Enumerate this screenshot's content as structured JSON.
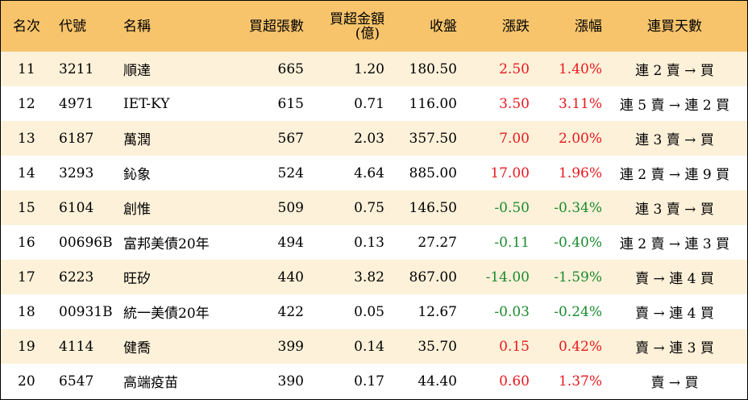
{
  "header": {
    "rank": "名次",
    "code": "代號",
    "name": "名稱",
    "buy_lots": "買超張數",
    "buy_amount_line1": "買超金額",
    "buy_amount_line2": "(億)",
    "close": "收盤",
    "change": "漲跌",
    "pct": "漲幅",
    "streak": "連買天數"
  },
  "rows": [
    {
      "rank": "11",
      "code": "3211",
      "name": "順達",
      "lots": "665",
      "amount": "1.20",
      "close": "180.50",
      "change": "2.50",
      "pct": "1.40%",
      "streak": "連 2 賣 → 買",
      "dir": "up"
    },
    {
      "rank": "12",
      "code": "4971",
      "name": "IET-KY",
      "lots": "615",
      "amount": "0.71",
      "close": "116.00",
      "change": "3.50",
      "pct": "3.11%",
      "streak": "連 5 賣 → 連 2 買",
      "dir": "up"
    },
    {
      "rank": "13",
      "code": "6187",
      "name": "萬潤",
      "lots": "567",
      "amount": "2.03",
      "close": "357.50",
      "change": "7.00",
      "pct": "2.00%",
      "streak": "連 3 賣 → 買",
      "dir": "up"
    },
    {
      "rank": "14",
      "code": "3293",
      "name": "鈊象",
      "lots": "524",
      "amount": "4.64",
      "close": "885.00",
      "change": "17.00",
      "pct": "1.96%",
      "streak": "連 2 賣 → 連 9 買",
      "dir": "up"
    },
    {
      "rank": "15",
      "code": "6104",
      "name": "創惟",
      "lots": "509",
      "amount": "0.75",
      "close": "146.50",
      "change": "-0.50",
      "pct": "-0.34%",
      "streak": "連 3 賣 → 買",
      "dir": "down"
    },
    {
      "rank": "16",
      "code": "00696B",
      "name": "富邦美債20年",
      "lots": "494",
      "amount": "0.13",
      "close": "27.27",
      "change": "-0.11",
      "pct": "-0.40%",
      "streak": "連 2 賣 → 連 3 買",
      "dir": "down"
    },
    {
      "rank": "17",
      "code": "6223",
      "name": "旺矽",
      "lots": "440",
      "amount": "3.82",
      "close": "867.00",
      "change": "-14.00",
      "pct": "-1.59%",
      "streak": "賣 → 連 4 買",
      "dir": "down"
    },
    {
      "rank": "18",
      "code": "00931B",
      "name": "統一美債20年",
      "lots": "422",
      "amount": "0.05",
      "close": "12.67",
      "change": "-0.03",
      "pct": "-0.24%",
      "streak": "賣 → 連 4 買",
      "dir": "down"
    },
    {
      "rank": "19",
      "code": "4114",
      "name": "健喬",
      "lots": "399",
      "amount": "0.14",
      "close": "35.70",
      "change": "0.15",
      "pct": "0.42%",
      "streak": "賣 → 連 3 買",
      "dir": "up"
    },
    {
      "rank": "20",
      "code": "6547",
      "name": "高端疫苗",
      "lots": "390",
      "amount": "0.17",
      "close": "44.40",
      "change": "0.60",
      "pct": "1.37%",
      "streak": "賣 → 買",
      "dir": "up"
    }
  ],
  "colors": {
    "header_bg": "#f7c46c",
    "odd_row_bg": "#fdf1d9",
    "up": "#e8191f",
    "down": "#1b8a2e"
  }
}
